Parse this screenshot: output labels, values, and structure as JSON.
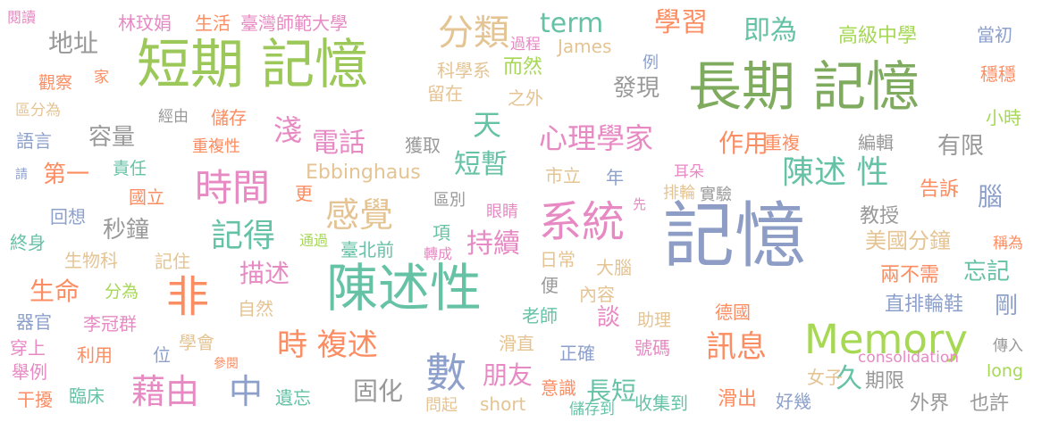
{
  "words": [
    {
      "text": "記憶",
      "color": "#8d9dc6"
    },
    {
      "text": "長期 記憶",
      "color": "#7fab5f"
    },
    {
      "text": "短期 記憶",
      "color": "#9cc85a"
    },
    {
      "text": "陳述性",
      "color": "#66c2a5"
    },
    {
      "text": "Memory",
      "color": "#a6d854"
    },
    {
      "text": "系統",
      "color": "#e78ac3"
    },
    {
      "text": "非",
      "color": "#fc8d62"
    },
    {
      "text": "數",
      "color": "#8da0cb"
    },
    {
      "text": "時間",
      "color": "#e78ac3"
    },
    {
      "text": "分類",
      "color": "#e5c494"
    },
    {
      "text": "感覺",
      "color": "#e5c494"
    },
    {
      "text": "記得",
      "color": "#66c2a5"
    },
    {
      "text": "陳述 性",
      "color": "#66c2a5"
    },
    {
      "text": "時 複述",
      "color": "#fc8d62"
    },
    {
      "text": "藉由",
      "color": "#e78ac3"
    },
    {
      "text": "中",
      "color": "#8da0cb"
    },
    {
      "text": "訊息",
      "color": "#fc8d62"
    },
    {
      "text": "短暫",
      "color": "#66c2a5"
    },
    {
      "text": "持續",
      "color": "#e78ac3"
    },
    {
      "text": "心理學家",
      "color": "#e78ac3"
    },
    {
      "text": "學習",
      "color": "#fc8d62"
    },
    {
      "text": "term",
      "color": "#66c2a5"
    },
    {
      "text": "即為",
      "color": "#66c2a5"
    },
    {
      "text": "天",
      "color": "#66c2a5"
    },
    {
      "text": "電話",
      "color": "#e78ac3"
    },
    {
      "text": "淺",
      "color": "#e78ac3"
    },
    {
      "text": "作用",
      "color": "#fc8d62"
    },
    {
      "text": "朋友",
      "color": "#e78ac3"
    },
    {
      "text": "固化",
      "color": "#999999"
    },
    {
      "text": "長短",
      "color": "#66c2a5"
    },
    {
      "text": "久",
      "color": "#66c2a5"
    },
    {
      "text": "地址",
      "color": "#999999"
    },
    {
      "text": "生命",
      "color": "#fc8d62"
    },
    {
      "text": "描述",
      "color": "#e78ac3"
    },
    {
      "text": "容量",
      "color": "#999999"
    },
    {
      "text": "秒鐘",
      "color": "#999999"
    },
    {
      "text": "第一",
      "color": "#fc8d62"
    },
    {
      "text": "發現",
      "color": "#999999"
    },
    {
      "text": "有限",
      "color": "#999999"
    },
    {
      "text": "Ebbinghaus",
      "color": "#e5c494"
    },
    {
      "text": "高級中學",
      "color": "#a6d854"
    },
    {
      "text": "當初",
      "color": "#8da0cb"
    },
    {
      "text": "穩穩",
      "color": "#fc8d62"
    },
    {
      "text": "小時",
      "color": "#a6d854"
    },
    {
      "text": "編輯",
      "color": "#999999"
    },
    {
      "text": "腦",
      "color": "#8da0cb"
    },
    {
      "text": "告訴",
      "color": "#fc8d62"
    },
    {
      "text": "教授",
      "color": "#999999"
    },
    {
      "text": "美國分鐘",
      "color": "#e5c494"
    },
    {
      "text": "稱為",
      "color": "#fc8d62"
    },
    {
      "text": "兩不需",
      "color": "#fc8d62"
    },
    {
      "text": "忘記",
      "color": "#66c2a5"
    },
    {
      "text": "直排輪鞋",
      "color": "#8da0cb"
    },
    {
      "text": "剛",
      "color": "#8da0cb"
    },
    {
      "text": "德國",
      "color": "#fc8d62"
    },
    {
      "text": "傳入",
      "color": "#999999"
    },
    {
      "text": "consolidation",
      "color": "#e78ac3"
    },
    {
      "text": "long",
      "color": "#a6d854"
    },
    {
      "text": "期限",
      "color": "#999999"
    },
    {
      "text": "女子",
      "color": "#e5c494"
    },
    {
      "text": "外界",
      "color": "#999999"
    },
    {
      "text": "也許",
      "color": "#999999"
    },
    {
      "text": "好幾",
      "color": "#8da0cb"
    },
    {
      "text": "滑出",
      "color": "#fc8d62"
    },
    {
      "text": "收集到",
      "color": "#66c2a5"
    },
    {
      "text": "儲存到",
      "color": "#66c2a5"
    },
    {
      "text": "short",
      "color": "#e5c494"
    },
    {
      "text": "問起",
      "color": "#e5c494"
    },
    {
      "text": "意識",
      "color": "#fc8d62"
    },
    {
      "text": "正確",
      "color": "#8da0cb"
    },
    {
      "text": "號碼",
      "color": "#e78ac3"
    },
    {
      "text": "滑直",
      "color": "#e5c494"
    },
    {
      "text": "老師",
      "color": "#66c2a5"
    },
    {
      "text": "助理",
      "color": "#e5c494"
    },
    {
      "text": "談",
      "color": "#e78ac3"
    },
    {
      "text": "內容",
      "color": "#e5c494"
    },
    {
      "text": "便",
      "color": "#999999"
    },
    {
      "text": "大腦",
      "color": "#e5c494"
    },
    {
      "text": "日常",
      "color": "#e5c494"
    },
    {
      "text": "轉成",
      "color": "#e78ac3"
    },
    {
      "text": "項",
      "color": "#66c2a5"
    },
    {
      "text": "臺北前",
      "color": "#66c2a5"
    },
    {
      "text": "通過",
      "color": "#a6d854"
    },
    {
      "text": "眼睛",
      "color": "#e78ac3"
    },
    {
      "text": "區別",
      "color": "#999999"
    },
    {
      "text": "市立",
      "color": "#e5c494"
    },
    {
      "text": "年",
      "color": "#8da0cb"
    },
    {
      "text": "先",
      "color": "#e78ac3"
    },
    {
      "text": "耳朵",
      "color": "#e78ac3"
    },
    {
      "text": "排輪",
      "color": "#e5c494"
    },
    {
      "text": "實驗",
      "color": "#999999"
    },
    {
      "text": "重複",
      "color": "#fc8d62"
    },
    {
      "text": "重複性",
      "color": "#fc8d62"
    },
    {
      "text": "獲取",
      "color": "#999999"
    },
    {
      "text": "留在",
      "color": "#e5c494"
    },
    {
      "text": "之外",
      "color": "#e5c494"
    },
    {
      "text": "科學系",
      "color": "#e5c494"
    },
    {
      "text": "而然",
      "color": "#a6d854"
    },
    {
      "text": "James",
      "color": "#e5c494"
    },
    {
      "text": "過程",
      "color": "#e78ac3"
    },
    {
      "text": "例",
      "color": "#8da0cb"
    },
    {
      "text": "林玟娟",
      "color": "#e78ac3"
    },
    {
      "text": "生活",
      "color": "#fc8d62"
    },
    {
      "text": "臺灣師範大學",
      "color": "#e78ac3"
    },
    {
      "text": "閱讀",
      "color": "#e78ac3"
    },
    {
      "text": "觀察",
      "color": "#fc8d62"
    },
    {
      "text": "家",
      "color": "#fc8d62"
    },
    {
      "text": "區分為",
      "color": "#e5c494"
    },
    {
      "text": "經由",
      "color": "#999999"
    },
    {
      "text": "儲存",
      "color": "#fc8d62"
    },
    {
      "text": "語言",
      "color": "#8da0cb"
    },
    {
      "text": "責任",
      "color": "#66c2a5"
    },
    {
      "text": "請",
      "color": "#8da0cb"
    },
    {
      "text": "國立",
      "color": "#fc8d62"
    },
    {
      "text": "更",
      "color": "#fc8d62"
    },
    {
      "text": "回想",
      "color": "#8da0cb"
    },
    {
      "text": "終身",
      "color": "#66c2a5"
    },
    {
      "text": "生物科",
      "color": "#e5c494"
    },
    {
      "text": "記住",
      "color": "#e5c494"
    },
    {
      "text": "分為",
      "color": "#a6d854"
    },
    {
      "text": "自然",
      "color": "#e5c494"
    },
    {
      "text": "器官",
      "color": "#8da0cb"
    },
    {
      "text": "李冠群",
      "color": "#e78ac3"
    },
    {
      "text": "穿上",
      "color": "#e78ac3"
    },
    {
      "text": "學會",
      "color": "#e5c494"
    },
    {
      "text": "舉例",
      "color": "#e78ac3"
    },
    {
      "text": "利用",
      "color": "#fc8d62"
    },
    {
      "text": "位",
      "color": "#8da0cb"
    },
    {
      "text": "參閱",
      "color": "#fc8d62"
    },
    {
      "text": "干擾",
      "color": "#fc8d62"
    },
    {
      "text": "臨床",
      "color": "#66c2a5"
    },
    {
      "text": "遺忘",
      "color": "#66c2a5"
    }
  ]
}
